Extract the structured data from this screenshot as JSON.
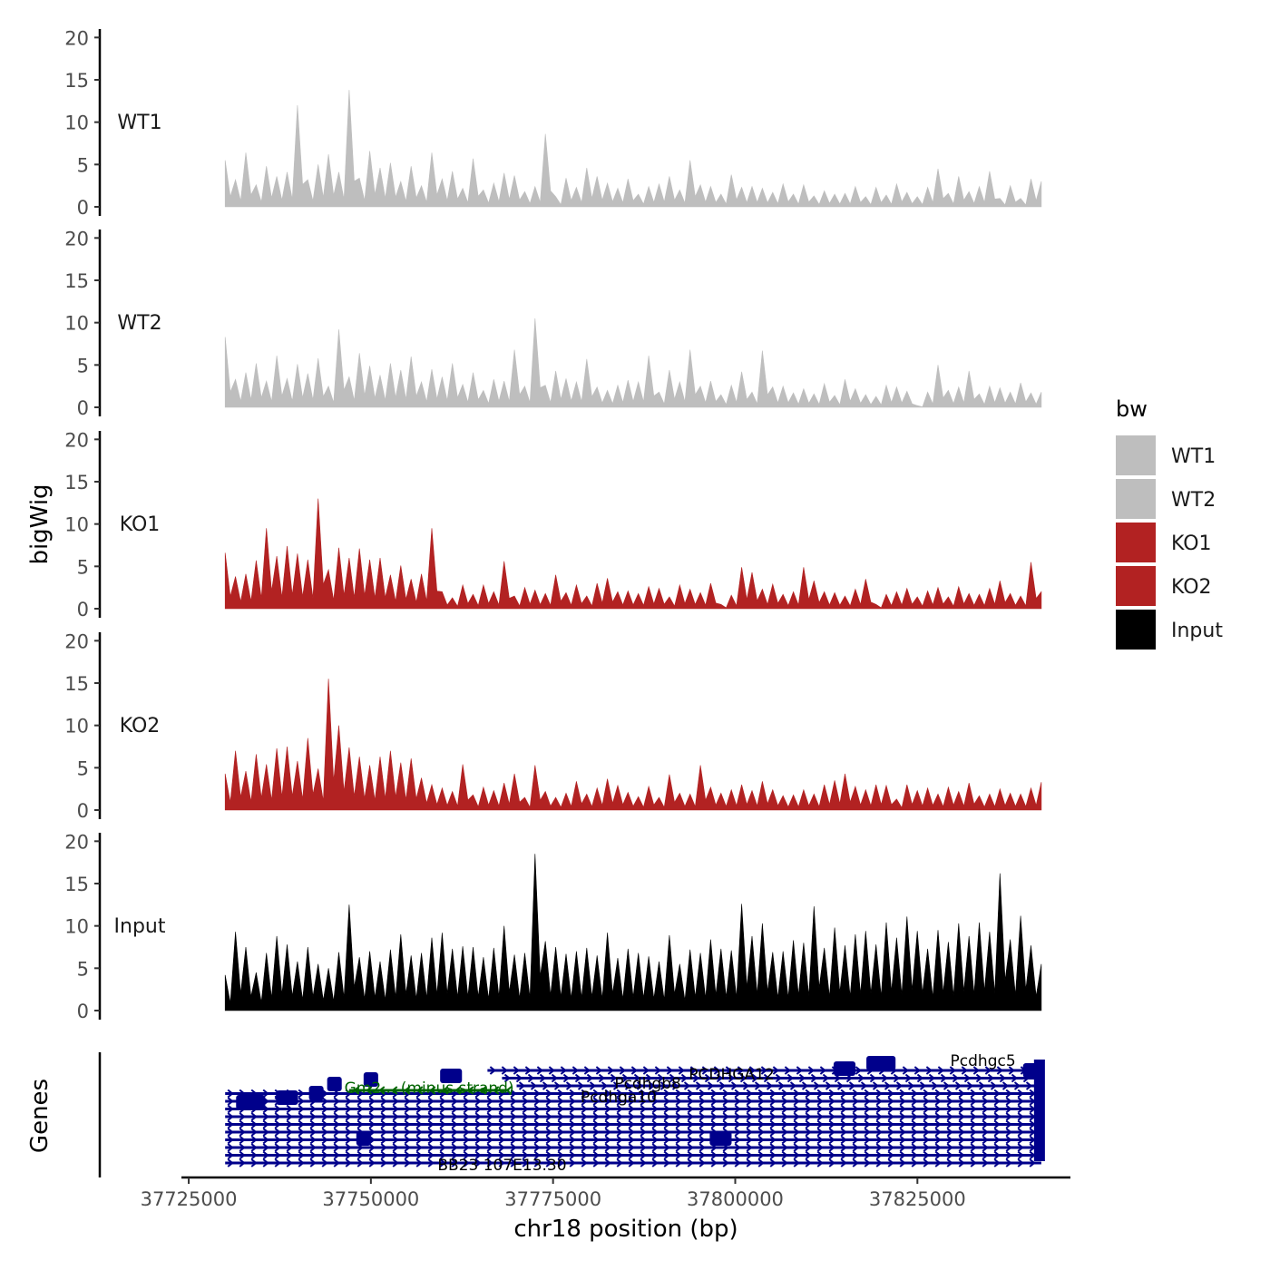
{
  "chart_data": {
    "type": "area",
    "ylabel": "bigWig",
    "xlabel": "chr18 position (bp)",
    "genes_label": "Genes",
    "x_ticks": [
      37725000,
      37750000,
      37775000,
      37800000,
      37825000
    ],
    "x_tick_labels": [
      "37725000",
      "37750000",
      "37775000",
      "37800000",
      "37825000"
    ],
    "xlim": [
      37724000,
      37846000
    ],
    "data_x_range": [
      37730000,
      37842000
    ],
    "ylim": [
      0,
      21
    ],
    "y_ticks": [
      0,
      5,
      10,
      15,
      20
    ],
    "y_tick_labels": [
      "0",
      "5",
      "10",
      "15",
      "20"
    ],
    "legend": {
      "title": "bw",
      "entries": [
        {
          "label": "WT1",
          "color": "#bebebe"
        },
        {
          "label": "WT2",
          "color": "#bebebe"
        },
        {
          "label": "KO1",
          "color": "#b22222"
        },
        {
          "label": "KO2",
          "color": "#b22222"
        },
        {
          "label": "Input",
          "color": "#000000"
        }
      ]
    },
    "series": [
      {
        "name": "WT1",
        "color": "#bebebe",
        "values": [
          5.5,
          3.2,
          6.4,
          2.6,
          4.8,
          3.6,
          4.1,
          12.0,
          3.2,
          5.0,
          6.2,
          4.1,
          13.8,
          3.4,
          6.6,
          4.6,
          5.2,
          3.0,
          4.8,
          2.5,
          6.4,
          3.3,
          4.2,
          2.2,
          5.7,
          2.0,
          2.8,
          4.0,
          3.7,
          1.8,
          2.4,
          8.6,
          1.2,
          3.4,
          2.3,
          4.6,
          3.6,
          2.8,
          2.2,
          3.3,
          1.5,
          2.4,
          2.7,
          3.6,
          2.0,
          5.5,
          2.6,
          2.4,
          1.5,
          3.8,
          2.3,
          2.4,
          2.2,
          1.7,
          2.7,
          1.5,
          2.6,
          1.3,
          1.9,
          1.5,
          1.6,
          2.4,
          1.2,
          2.3,
          1.4,
          2.7,
          1.7,
          1.2,
          2.3,
          4.5,
          1.6,
          3.6,
          1.8,
          2.4,
          4.2,
          1.0,
          2.5,
          1.0,
          3.3,
          3.0
        ]
      },
      {
        "name": "WT2",
        "color": "#bebebe",
        "values": [
          8.3,
          3.3,
          4.1,
          5.2,
          3.1,
          6.1,
          3.4,
          5.1,
          4.0,
          5.8,
          2.5,
          9.2,
          3.6,
          6.4,
          4.9,
          3.8,
          5.2,
          4.4,
          6.0,
          3.0,
          4.5,
          3.6,
          5.2,
          2.7,
          4.1,
          2.0,
          3.3,
          3.1,
          6.8,
          2.5,
          10.5,
          2.6,
          4.3,
          3.4,
          3.0,
          5.7,
          2.4,
          2.0,
          2.6,
          3.2,
          3.0,
          6.1,
          1.8,
          4.4,
          3.0,
          6.8,
          2.5,
          3.1,
          1.5,
          2.6,
          4.2,
          1.8,
          6.7,
          2.4,
          2.5,
          1.7,
          2.2,
          1.6,
          2.8,
          1.4,
          3.3,
          2.2,
          1.5,
          1.3,
          2.6,
          2.4,
          1.9,
          0.2,
          1.8,
          5.0,
          2.0,
          2.4,
          4.3,
          1.6,
          2.5,
          2.3,
          1.8,
          2.9,
          1.7,
          1.8
        ]
      },
      {
        "name": "KO1",
        "color": "#b22222",
        "values": [
          6.6,
          3.8,
          4.1,
          5.7,
          9.5,
          6.2,
          7.4,
          6.5,
          5.8,
          13.0,
          4.6,
          7.2,
          6.0,
          7.1,
          5.8,
          6.0,
          4.0,
          5.1,
          3.5,
          4.1,
          9.5,
          2.0,
          1.3,
          2.8,
          1.7,
          2.8,
          2.0,
          5.6,
          1.5,
          2.5,
          2.2,
          1.8,
          4.0,
          1.9,
          2.8,
          1.5,
          3.0,
          3.6,
          2.0,
          2.1,
          1.8,
          2.6,
          2.4,
          1.4,
          2.8,
          2.3,
          1.9,
          3.0,
          0.5,
          1.6,
          4.9,
          4.3,
          2.3,
          2.9,
          1.7,
          2.0,
          4.9,
          3.3,
          2.0,
          1.9,
          1.5,
          2.3,
          3.5,
          0.5,
          1.7,
          2.0,
          2.4,
          1.4,
          2.1,
          2.5,
          1.4,
          2.6,
          1.8,
          1.7,
          2.4,
          3.3,
          1.8,
          1.5,
          5.5,
          2.0
        ]
      },
      {
        "name": "KO2",
        "color": "#b22222",
        "values": [
          4.3,
          7.0,
          4.6,
          6.6,
          5.4,
          7.3,
          7.5,
          5.8,
          8.5,
          4.9,
          15.5,
          10.0,
          7.4,
          6.3,
          5.3,
          6.3,
          7.0,
          5.6,
          6.1,
          3.8,
          3.0,
          2.6,
          2.2,
          5.4,
          1.8,
          2.7,
          2.3,
          3.2,
          4.3,
          1.5,
          5.3,
          2.2,
          1.5,
          2.0,
          3.4,
          1.9,
          2.6,
          3.7,
          2.9,
          2.1,
          1.6,
          2.8,
          1.5,
          4.2,
          2.0,
          1.9,
          5.3,
          2.7,
          2.0,
          2.4,
          3.0,
          2.3,
          3.4,
          2.4,
          1.7,
          1.8,
          2.4,
          1.9,
          3.0,
          3.5,
          4.3,
          2.8,
          2.4,
          3.0,
          2.9,
          1.3,
          3.0,
          2.3,
          2.6,
          1.9,
          2.7,
          2.2,
          3.2,
          1.7,
          1.9,
          2.5,
          2.0,
          1.9,
          2.6,
          3.3
        ]
      },
      {
        "name": "Input",
        "color": "#000000",
        "values": [
          4.2,
          9.3,
          7.5,
          4.5,
          6.8,
          8.8,
          7.8,
          5.8,
          7.5,
          5.5,
          5.0,
          6.9,
          12.5,
          6.3,
          7.0,
          5.8,
          7.2,
          9.0,
          6.5,
          6.8,
          8.6,
          9.2,
          7.3,
          7.6,
          7.5,
          6.3,
          7.4,
          10.0,
          6.6,
          6.8,
          18.5,
          8.2,
          7.5,
          6.7,
          7.0,
          7.4,
          6.5,
          9.2,
          6.2,
          7.3,
          6.8,
          6.4,
          5.8,
          8.9,
          5.5,
          7.2,
          6.8,
          8.4,
          7.3,
          7.1,
          12.6,
          8.8,
          10.3,
          6.9,
          7.0,
          8.3,
          8.0,
          12.3,
          7.4,
          9.8,
          7.7,
          9.0,
          9.4,
          7.8,
          10.4,
          8.6,
          11.1,
          9.4,
          7.3,
          9.5,
          8.1,
          10.3,
          8.8,
          10.4,
          9.3,
          16.2,
          8.4,
          11.2,
          7.7,
          5.5
        ]
      }
    ],
    "genes": [
      {
        "label": "Gm2... (minus strand)",
        "start": 37747000,
        "end": 37769000,
        "strand": "-",
        "color": "#006400"
      },
      {
        "label": "PCDHGA12",
        "start": 37775000,
        "end": 37842000,
        "strand": "+",
        "color": "#00008b"
      },
      {
        "label": "Pcdhgb8",
        "start": 37770000,
        "end": 37842000,
        "strand": "+",
        "color": "#00008b"
      },
      {
        "label": "Pcdhga10",
        "start": 37768000,
        "end": 37842000,
        "strand": "+",
        "color": "#00008b"
      },
      {
        "label": "BB23 107E13.30",
        "start": 37761000,
        "end": 37842000,
        "strand": "+",
        "color": "#00008b"
      },
      {
        "label": "Pcdhgc5",
        "start": 37820000,
        "end": 37842000,
        "strand": "+",
        "color": "#00008b"
      }
    ]
  }
}
